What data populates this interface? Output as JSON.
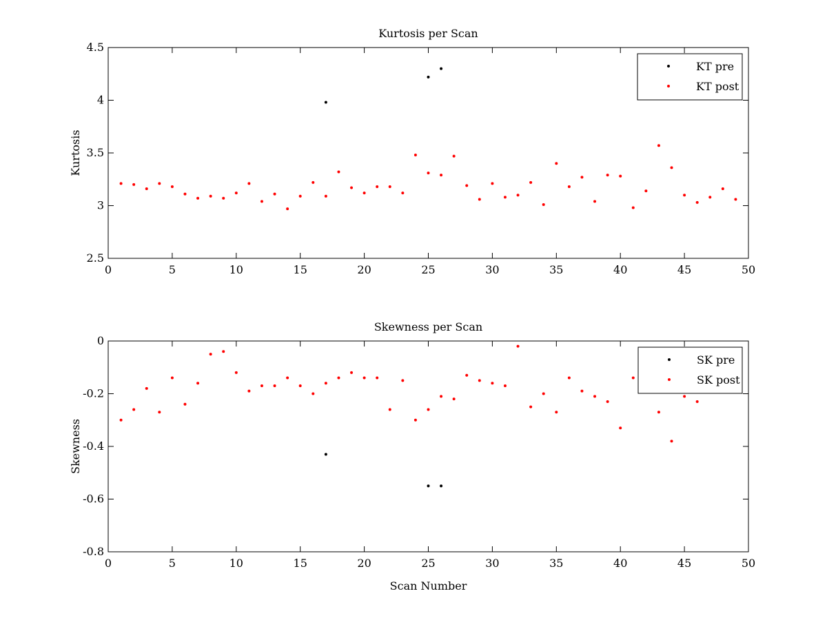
{
  "chart_data": [
    {
      "type": "scatter",
      "title": "Kurtosis per Scan",
      "xlabel": "",
      "ylabel": "Kurtosis",
      "xlim": [
        0,
        50
      ],
      "ylim": [
        2.5,
        4.5
      ],
      "xticks": [
        "0",
        "5",
        "10",
        "15",
        "20",
        "25",
        "30",
        "35",
        "40",
        "45",
        "50"
      ],
      "yticks": [
        "2.5",
        "3",
        "3.5",
        "4",
        "4.5"
      ],
      "legend_position": "top-right",
      "grid": false,
      "series": [
        {
          "name": "KT pre",
          "color": "#000000",
          "marker": "dot",
          "x": [
            17,
            25,
            26
          ],
          "y": [
            3.98,
            4.22,
            4.3
          ]
        },
        {
          "name": "KT post",
          "color": "#ff0000",
          "marker": "dot",
          "x": [
            1,
            2,
            3,
            4,
            5,
            6,
            7,
            8,
            9,
            10,
            11,
            12,
            13,
            14,
            15,
            16,
            17,
            18,
            19,
            20,
            21,
            22,
            23,
            24,
            25,
            26,
            27,
            28,
            29,
            30,
            31,
            32,
            33,
            34,
            35,
            36,
            37,
            38,
            39,
            40,
            41,
            42,
            43,
            44,
            45,
            46,
            47,
            48,
            49
          ],
          "y": [
            3.21,
            3.2,
            3.16,
            3.21,
            3.18,
            3.11,
            3.07,
            3.09,
            3.07,
            3.12,
            3.21,
            3.04,
            3.11,
            2.97,
            3.09,
            3.22,
            3.09,
            3.32,
            3.17,
            3.12,
            3.18,
            3.18,
            3.12,
            3.48,
            3.31,
            3.29,
            3.47,
            3.19,
            3.06,
            3.21,
            3.08,
            3.1,
            3.22,
            3.01,
            3.4,
            3.18,
            3.27,
            3.04,
            3.29,
            3.28,
            2.98,
            3.14,
            3.57,
            3.36,
            3.1,
            3.03,
            3.08,
            3.16,
            3.06
          ]
        }
      ]
    },
    {
      "type": "scatter",
      "title": "Skewness per Scan",
      "xlabel": "Scan Number",
      "ylabel": "Skewness",
      "xlim": [
        0,
        50
      ],
      "ylim": [
        -0.8,
        0
      ],
      "xticks": [
        "0",
        "5",
        "10",
        "15",
        "20",
        "25",
        "30",
        "35",
        "40",
        "45",
        "50"
      ],
      "yticks": [
        "-0.8",
        "-0.6",
        "-0.4",
        "-0.2",
        "0"
      ],
      "legend_position": "top-right",
      "grid": false,
      "series": [
        {
          "name": "SK pre",
          "color": "#000000",
          "marker": "dot",
          "x": [
            17,
            25,
            26
          ],
          "y": [
            -0.43,
            -0.55,
            -0.55
          ]
        },
        {
          "name": "SK post",
          "color": "#ff0000",
          "marker": "dot",
          "x": [
            1,
            2,
            3,
            4,
            5,
            6,
            7,
            8,
            9,
            10,
            11,
            12,
            13,
            14,
            15,
            16,
            17,
            18,
            19,
            20,
            21,
            22,
            23,
            24,
            25,
            26,
            27,
            28,
            29,
            30,
            31,
            32,
            33,
            34,
            35,
            36,
            37,
            38,
            39,
            40,
            41,
            42,
            43,
            44,
            45,
            46
          ],
          "y": [
            -0.3,
            -0.26,
            -0.18,
            -0.27,
            -0.14,
            -0.24,
            -0.16,
            -0.05,
            -0.04,
            -0.12,
            -0.19,
            -0.17,
            -0.17,
            -0.14,
            -0.17,
            -0.2,
            -0.16,
            -0.14,
            -0.12,
            -0.14,
            -0.14,
            -0.26,
            -0.15,
            -0.3,
            -0.26,
            -0.21,
            -0.22,
            -0.13,
            -0.15,
            -0.16,
            -0.17,
            -0.02,
            -0.25,
            -0.2,
            -0.27,
            -0.14,
            -0.19,
            -0.21,
            -0.23,
            -0.33,
            -0.14,
            -0.12,
            -0.27,
            -0.38,
            -0.21,
            -0.23
          ]
        }
      ]
    }
  ]
}
